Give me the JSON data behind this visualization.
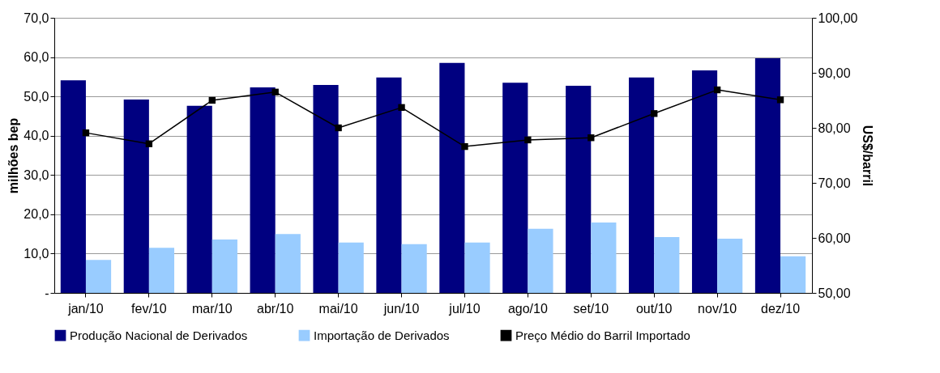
{
  "chart_data": {
    "type": "bar",
    "categories": [
      "jan/10",
      "fev/10",
      "mar/10",
      "abr/10",
      "mai/10",
      "jun/10",
      "jul/10",
      "ago/10",
      "set/10",
      "out/10",
      "nov/10",
      "dez/10"
    ],
    "ylabel": "milhões bep",
    "y2label": "US$/barril",
    "ylim": [
      0,
      70
    ],
    "yticks": [
      {
        "value": 0,
        "label": "-"
      },
      {
        "value": 10,
        "label": "10,0"
      },
      {
        "value": 20,
        "label": "20,0"
      },
      {
        "value": 30,
        "label": "30,0"
      },
      {
        "value": 40,
        "label": "40,0"
      },
      {
        "value": 50,
        "label": "50,0"
      },
      {
        "value": 60,
        "label": "60,0"
      },
      {
        "value": 70,
        "label": "70,0"
      }
    ],
    "y2lim": [
      50,
      100
    ],
    "y2ticks": [
      {
        "value": 50,
        "label": "50,00"
      },
      {
        "value": 60,
        "label": "60,00"
      },
      {
        "value": 70,
        "label": "70,00"
      },
      {
        "value": 80,
        "label": "80,00"
      },
      {
        "value": 90,
        "label": "90,00"
      },
      {
        "value": 100,
        "label": "100,00"
      }
    ],
    "grid": "y",
    "legend": "bottom",
    "series": [
      {
        "name": "Produção Nacional de Derivados",
        "color": "#000080",
        "values": [
          54.1,
          49.2,
          47.6,
          52.3,
          52.9,
          54.8,
          58.5,
          53.5,
          52.7,
          54.8,
          56.6,
          59.7
        ]
      },
      {
        "name": "Importação de Derivados",
        "color": "#99ccff",
        "values": [
          8.4,
          11.5,
          13.6,
          15.0,
          12.8,
          12.4,
          12.8,
          16.3,
          17.9,
          14.2,
          13.8,
          9.3
        ]
      },
      {
        "name": "Preço Médio do Barril Importado",
        "type": "line",
        "axis": "y2",
        "color": "#000000",
        "marker": "square",
        "values": [
          79.1,
          77.1,
          85.0,
          86.5,
          80.0,
          83.7,
          76.6,
          77.8,
          78.2,
          82.6,
          86.9,
          85.1
        ]
      }
    ]
  }
}
